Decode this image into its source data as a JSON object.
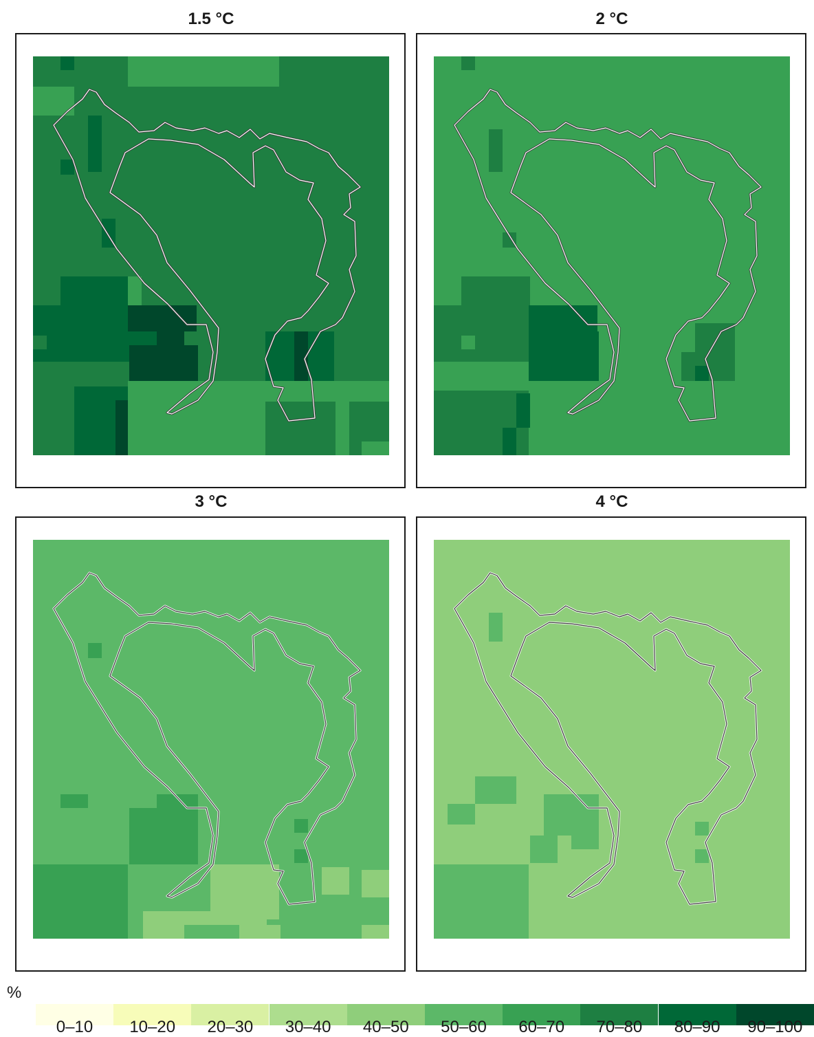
{
  "panels": [
    {
      "title": "1.5 °C",
      "base_class": "70-80"
    },
    {
      "title": "2 °C",
      "base_class": "60-70"
    },
    {
      "title": "3 °C",
      "base_class": "50-60"
    },
    {
      "title": "4 °C",
      "base_class": "40-50"
    }
  ],
  "legend": {
    "unit": "%",
    "classes": [
      {
        "label": "0–10",
        "color": "#ffffe5"
      },
      {
        "label": "10–20",
        "color": "#f7fcb9"
      },
      {
        "label": "20–30",
        "color": "#d9f0a3"
      },
      {
        "label": "30–40",
        "color": "#addd8e"
      },
      {
        "label": "40–50",
        "color": "#8fce7b"
      },
      {
        "label": "50–60",
        "color": "#5cb868"
      },
      {
        "label": "60–70",
        "color": "#38a153"
      },
      {
        "label": "70–80",
        "color": "#1e7f42"
      },
      {
        "label": "80–90",
        "color": "#006837"
      },
      {
        "label": "90–100",
        "color": "#00472b"
      }
    ]
  }
}
